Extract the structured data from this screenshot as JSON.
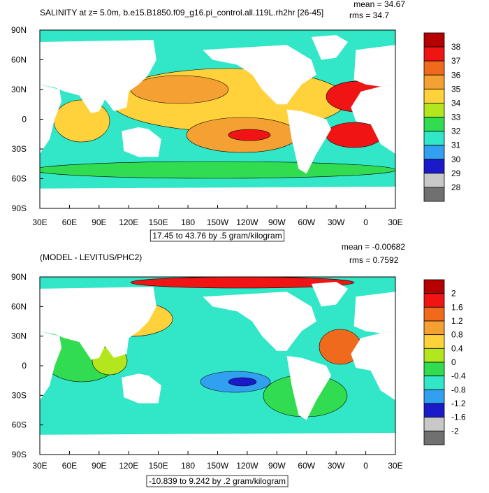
{
  "panels": [
    {
      "title": "SALINITY at z=   5.0m, b.e15.B1850.f09_g16.pi_control.all.119L.rh2hr [26-45]",
      "mean": "mean = 34.67",
      "rms": "rms = 34.7",
      "lat_labels": [
        "90N",
        "60N",
        "30N",
        "0",
        "30S",
        "60S",
        "90S"
      ],
      "lon_labels": [
        "30E",
        "60E",
        "90E",
        "120E",
        "150E",
        "180",
        "150W",
        "120W",
        "90W",
        "60W",
        "30W",
        "0",
        "30E"
      ],
      "colorbar": {
        "labels": [
          "38",
          "37",
          "36",
          "35",
          "34",
          "33",
          "32",
          "31",
          "30",
          "29",
          "28"
        ],
        "colors": [
          "#b40000",
          "#f01414",
          "#f06a1e",
          "#f5a032",
          "#ffd23c",
          "#b4e61e",
          "#32dc50",
          "#32e6c8",
          "#32a0f0",
          "#1a1ac8",
          "#c8c8c8",
          "#707070"
        ]
      },
      "info": "17.45 to 43.76 by .5 gram/kilogram"
    },
    {
      "title": "(MODEL - LEVITUS/PHC2)",
      "mean": "mean = -0.00682",
      "rms": "rms = 0.7592",
      "lat_labels": [
        "90N",
        "60N",
        "30N",
        "0",
        "30S",
        "60S",
        "90S"
      ],
      "lon_labels": [
        "30E",
        "60E",
        "90E",
        "120E",
        "150E",
        "180",
        "150W",
        "120W",
        "90W",
        "60W",
        "30W",
        "0",
        "30E"
      ],
      "colorbar": {
        "labels": [
          "2",
          "1.6",
          "1.2",
          "0.8",
          "0.4",
          "0",
          "-0.4",
          "-0.8",
          "-1.2",
          "-1.6",
          "-2"
        ],
        "colors": [
          "#b40000",
          "#f01414",
          "#f06a1e",
          "#f5a032",
          "#ffd23c",
          "#b4e61e",
          "#32dc50",
          "#32e6c8",
          "#32a0f0",
          "#1a1ac8",
          "#c8c8c8",
          "#707070"
        ]
      },
      "info": "-10.839 to 9.242 by .2 gram/kilogram"
    }
  ]
}
